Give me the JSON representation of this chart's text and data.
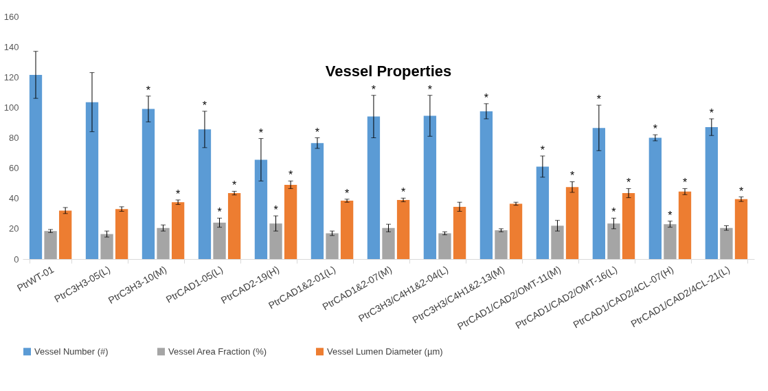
{
  "chart_data": {
    "type": "bar",
    "title": "Vessel Properties",
    "categories": [
      "PtrWT-01",
      "PtrC3H3-05(L)",
      "PtrC3H3-10(M)",
      "PtrCAD1-05(L)",
      "PtrCAD2-19(H)",
      "PtrCAD1&2-01(L)",
      "PtrCAD1&2-07(M)",
      "PtrC3H3/C4H1&2-04(L)",
      "PtrC3H3/C4H1&2-13(M)",
      "PtrCAD1/CAD2/OMT-11(M)",
      "PtrCAD1/CAD2/OMT-16(L)",
      "PtrCAD1/CAD2/4CL-07(H)",
      "PtrCAD1/CAD2/4CL-21(L)"
    ],
    "series": [
      {
        "name": "Vessel Number (#)",
        "color": "#5b9bd5",
        "values": [
          121.5,
          103.5,
          99,
          85.5,
          65.5,
          76.5,
          94,
          94.5,
          97.5,
          61,
          86.5,
          80,
          87
        ],
        "errors": [
          15.5,
          19.5,
          8.5,
          12,
          14,
          3.5,
          14,
          13.5,
          5,
          7,
          15,
          2,
          5.5
        ],
        "value_labels": [
          null,
          null,
          "*",
          "*",
          "*",
          "*",
          "*",
          "*",
          "*",
          "*",
          "*",
          "*",
          "*"
        ]
      },
      {
        "name": "Vessel Area Fraction (%)",
        "color": "#a5a5a5",
        "values": [
          18.5,
          16.5,
          20.5,
          24,
          23.5,
          17,
          20.5,
          17,
          19,
          22,
          23.5,
          23,
          20.5
        ],
        "errors": [
          1,
          2,
          2,
          3,
          5,
          1.5,
          2.5,
          1,
          1,
          3.5,
          3.5,
          2,
          1.5
        ],
        "value_labels": [
          null,
          null,
          null,
          "*",
          "*",
          null,
          null,
          null,
          null,
          null,
          "*",
          "*",
          null
        ]
      },
      {
        "name": "Vessel Lumen Diameter (µm)",
        "color": "#ed7d31",
        "values": [
          32,
          33,
          37.5,
          43.5,
          49,
          38.5,
          39,
          34.5,
          36.5,
          47.5,
          43.5,
          44.5,
          39.5
        ],
        "errors": [
          2,
          1.5,
          1.5,
          1.2,
          2.5,
          1,
          1.2,
          3,
          1,
          3.5,
          3,
          2,
          1.5
        ],
        "value_labels": [
          null,
          null,
          "*",
          "*",
          "*",
          "*",
          "*",
          null,
          null,
          "*",
          "*",
          "*",
          "*"
        ]
      }
    ],
    "ylim": [
      0,
      160
    ],
    "yticks": [
      0,
      20,
      40,
      60,
      80,
      100,
      120,
      140,
      160
    ],
    "legend": "bottom"
  }
}
